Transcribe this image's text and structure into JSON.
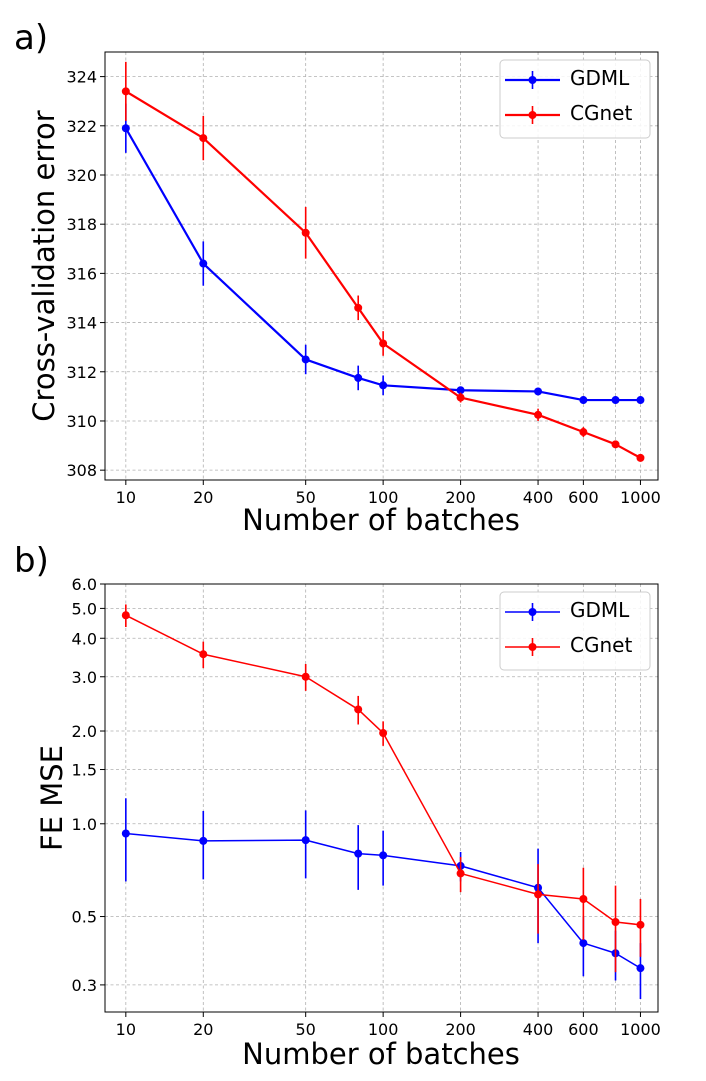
{
  "chart_data": [
    {
      "panel_label": "a)",
      "type": "line",
      "xscale": "log",
      "yscale": "linear",
      "xlabel": "Number of batches",
      "ylabel": "Cross-validation error",
      "xlim": [
        8.3,
        1170
      ],
      "ylim": [
        307.6,
        325.0
      ],
      "grid": true,
      "legend_position": "top-right",
      "x_ticks": [
        10,
        20,
        50,
        100,
        200,
        400,
        600,
        1000
      ],
      "x_tick_labels": [
        "10",
        "20",
        "50",
        "100",
        "200",
        "400",
        "600",
        "1000"
      ],
      "y_ticks": [
        308,
        310,
        312,
        314,
        316,
        318,
        320,
        322,
        324
      ],
      "y_tick_labels": [
        "308",
        "310",
        "312",
        "314",
        "316",
        "318",
        "320",
        "322",
        "324"
      ],
      "x_grid": [
        10,
        20,
        50,
        100,
        200,
        400,
        600,
        800,
        1000
      ],
      "line_width": 2.2,
      "series": [
        {
          "name": "GDML",
          "color": "#0000ff",
          "x": [
            10,
            20,
            50,
            80,
            100,
            200,
            400,
            600,
            800,
            1000
          ],
          "y": [
            321.9,
            316.4,
            312.5,
            311.75,
            311.45,
            311.25,
            311.2,
            310.85,
            310.85,
            310.85
          ],
          "err": [
            1.0,
            0.9,
            0.6,
            0.5,
            0.4,
            0.15,
            0.15,
            0.15,
            0.1,
            0.1
          ]
        },
        {
          "name": "CGnet",
          "color": "#ff0000",
          "x": [
            10,
            20,
            50,
            80,
            100,
            200,
            400,
            600,
            800,
            1000
          ],
          "y": [
            323.4,
            321.5,
            317.65,
            314.6,
            313.15,
            310.95,
            310.25,
            309.55,
            309.05,
            308.5
          ],
          "err": [
            1.2,
            0.9,
            1.05,
            0.5,
            0.5,
            0.2,
            0.25,
            0.2,
            0.15,
            0.1
          ]
        }
      ]
    },
    {
      "panel_label": "b)",
      "type": "line",
      "xscale": "log",
      "yscale": "log",
      "xlabel": "Number of batches",
      "ylabel": "FE MSE",
      "xlim": [
        8.3,
        1170
      ],
      "ylim": [
        0.245,
        6.0
      ],
      "grid": true,
      "legend_position": "top-right",
      "x_ticks": [
        10,
        20,
        50,
        100,
        200,
        400,
        600,
        1000
      ],
      "x_tick_labels": [
        "10",
        "20",
        "50",
        "100",
        "200",
        "400",
        "600",
        "1000"
      ],
      "y_ticks": [
        0.3,
        0.5,
        1.0,
        1.5,
        2.0,
        3.0,
        4.0,
        5.0,
        6.0
      ],
      "y_tick_labels": [
        "0.3",
        "0.5",
        "1.0",
        "1.5",
        "2.0",
        "3.0",
        "4.0",
        "5.0",
        "6.0"
      ],
      "x_grid": [
        10,
        20,
        50,
        100,
        200,
        400,
        600,
        800,
        1000
      ],
      "line_width": 1.5,
      "series": [
        {
          "name": "GDML",
          "color": "#0000ff",
          "x": [
            10,
            20,
            50,
            80,
            100,
            200,
            400,
            600,
            800,
            1000
          ],
          "y": [
            0.93,
            0.88,
            0.885,
            0.8,
            0.79,
            0.73,
            0.62,
            0.41,
            0.38,
            0.34
          ],
          "err": [
            0.28,
            0.22,
            0.22,
            0.19,
            0.16,
            0.08,
            0.21,
            0.09,
            0.07,
            0.07
          ]
        },
        {
          "name": "CGnet",
          "color": "#ff0000",
          "x": [
            10,
            20,
            50,
            80,
            100,
            200,
            400,
            600,
            800,
            1000
          ],
          "y": [
            4.75,
            3.55,
            3.0,
            2.35,
            1.97,
            0.69,
            0.59,
            0.57,
            0.48,
            0.47
          ],
          "err": [
            0.4,
            0.35,
            0.3,
            0.25,
            0.18,
            0.09,
            0.15,
            0.15,
            0.15,
            0.1
          ]
        }
      ]
    }
  ]
}
